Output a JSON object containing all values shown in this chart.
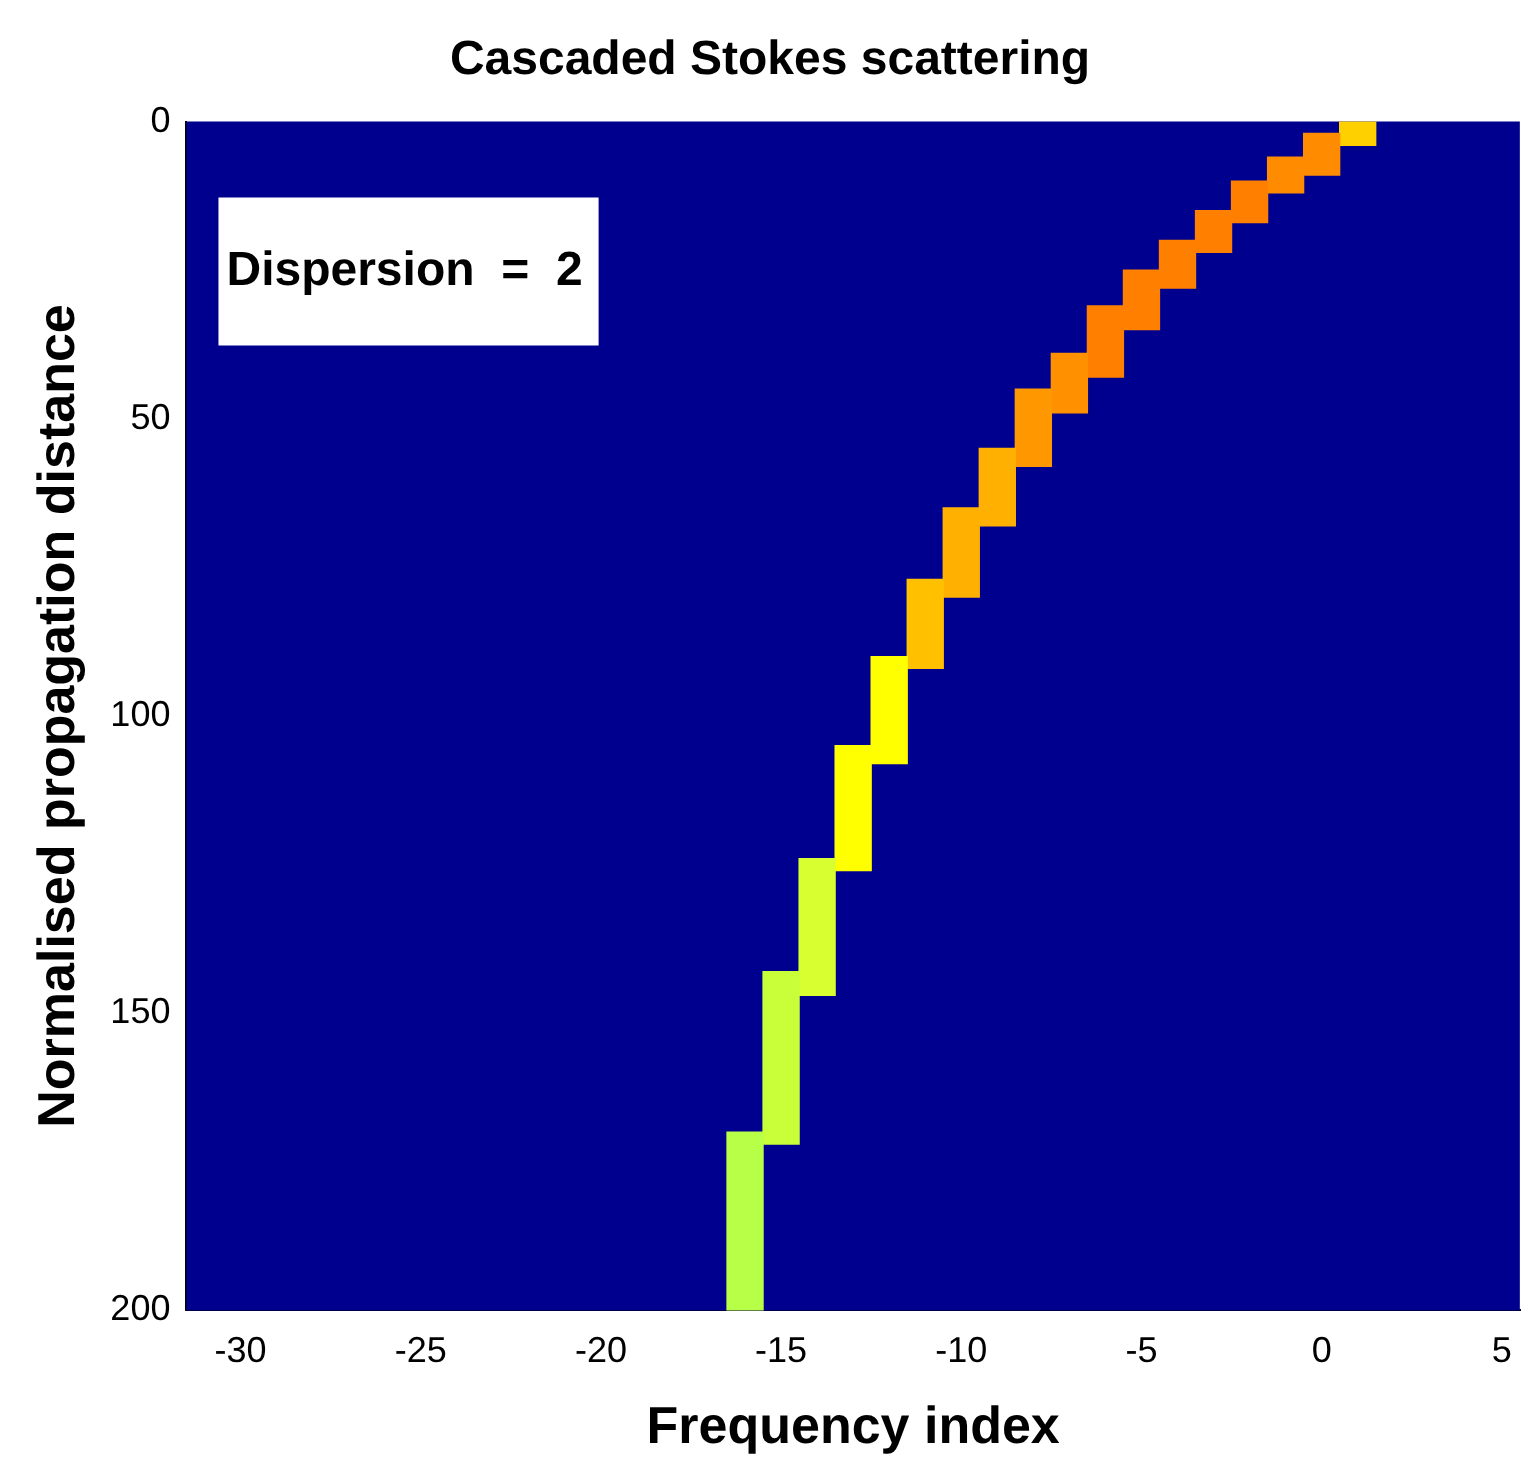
{
  "chart_data": {
    "type": "bar",
    "title": "Cascaded Stokes scattering",
    "xlabel": "Frequency index",
    "ylabel": "Normalised propagation distance",
    "annotations": [
      "Dispersion  =  2"
    ],
    "x": [
      1,
      0,
      -1,
      -2,
      -3,
      -4,
      -5,
      -6,
      -7,
      -8,
      -9,
      -10,
      -11,
      -12,
      -13,
      -14,
      -15,
      -16
    ],
    "base": [
      0,
      2,
      6,
      10,
      15,
      20,
      25,
      31,
      39,
      45,
      55,
      65,
      77,
      90,
      105,
      124,
      143,
      170
    ],
    "values": [
      4,
      7,
      6,
      7,
      7,
      8,
      10,
      12,
      10,
      13,
      13,
      15,
      15,
      18,
      21,
      23,
      29,
      30
    ],
    "colors": [
      "#ffd000",
      "#ff8c00",
      "#ff8c00",
      "#ff8000",
      "#ff8000",
      "#ff8000",
      "#ff8000",
      "#ff8000",
      "#ff9000",
      "#ff9800",
      "#ffb000",
      "#ffb000",
      "#ffc000",
      "#ffff00",
      "#ffff00",
      "#d8ff30",
      "#c8ff38",
      "#b8ff48"
    ],
    "xlim": [
      -31.5,
      5.5
    ],
    "xticks": [
      -30,
      -25,
      -20,
      -15,
      -10,
      -5,
      0,
      5
    ],
    "ylim": [
      200,
      0
    ],
    "yticks": [
      0,
      50,
      100,
      150,
      200
    ],
    "grid": false,
    "legend": false
  }
}
